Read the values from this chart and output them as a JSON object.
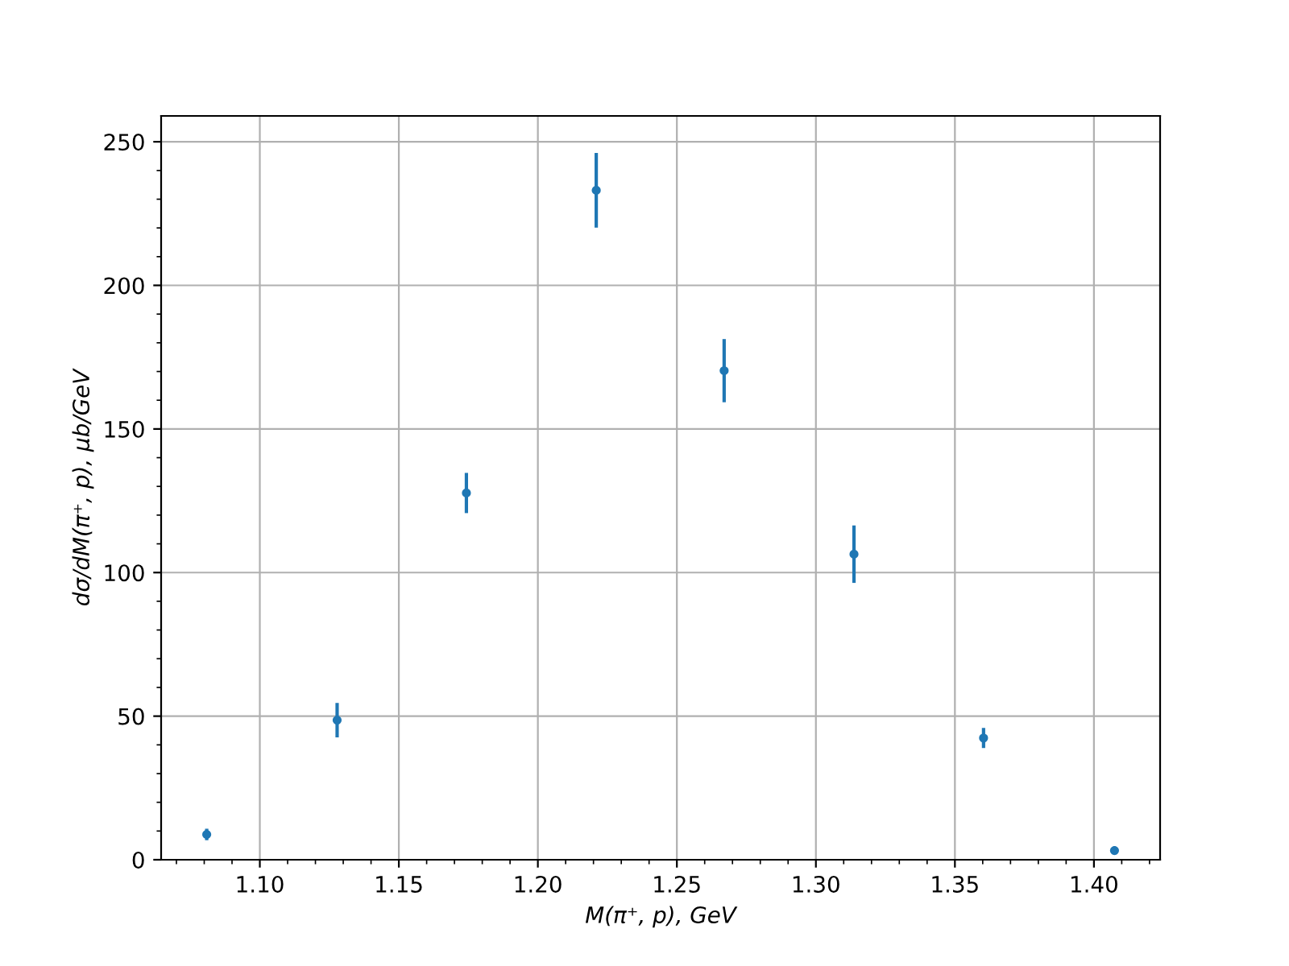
{
  "chart_data": {
    "type": "scatter",
    "xlabel": "M(π⁺, p), GeV",
    "ylabel": "dσ/dM(π⁺, p), μb/GeV",
    "x": [
      1.0809,
      1.1278,
      1.1743,
      1.221,
      1.267,
      1.3137,
      1.3603,
      1.4074
    ],
    "values": [
      8.8,
      48.6,
      127.7,
      233.1,
      170.3,
      106.4,
      42.4,
      3.2
    ],
    "errors": [
      2,
      6,
      7,
      13,
      11,
      10,
      3.5,
      null
    ],
    "color": "#1f77b4",
    "marker": "circle",
    "xlim": [
      1.0645,
      1.4238
    ],
    "ylim": [
      0,
      259
    ],
    "xticks": [
      {
        "value": 1.1,
        "label": "1.10"
      },
      {
        "value": 1.15,
        "label": "1.15"
      },
      {
        "value": 1.2,
        "label": "1.20"
      },
      {
        "value": 1.25,
        "label": "1.25"
      },
      {
        "value": 1.3,
        "label": "1.30"
      },
      {
        "value": 1.35,
        "label": "1.35"
      },
      {
        "value": 1.4,
        "label": "1.40"
      }
    ],
    "yticks": [
      0,
      50,
      100,
      150,
      200,
      250
    ],
    "grid": true
  }
}
